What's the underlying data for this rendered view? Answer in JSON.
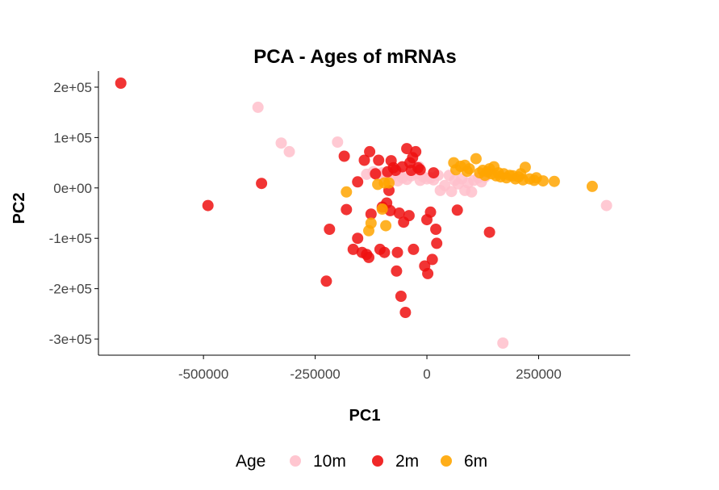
{
  "chart_data": {
    "type": "scatter",
    "title": "PCA - Ages of mRNAs",
    "xlabel": "PC1",
    "ylabel": "PC2",
    "xlim": [
      -735000,
      455000
    ],
    "ylim": [
      -332000,
      232000
    ],
    "x_ticks": [
      {
        "value": -500000,
        "label": "-500000"
      },
      {
        "value": -250000,
        "label": "-250000"
      },
      {
        "value": 0,
        "label": "0"
      },
      {
        "value": 250000,
        "label": "250000"
      }
    ],
    "y_ticks": [
      {
        "value": 200000,
        "label": "2e+05"
      },
      {
        "value": 100000,
        "label": "1e+05"
      },
      {
        "value": 0,
        "label": "0e+00"
      },
      {
        "value": -100000,
        "label": "-1e+05"
      },
      {
        "value": -200000,
        "label": "-2e+05"
      },
      {
        "value": -300000,
        "label": "-3e+05"
      }
    ],
    "grid": false,
    "legend": {
      "title": "Age",
      "placement": "bottom"
    },
    "series": [
      {
        "name": "10m",
        "color": "#ffc0cb",
        "points": [
          [
            -378000,
            160000
          ],
          [
            -326000,
            89000
          ],
          [
            -308000,
            72000
          ],
          [
            -200000,
            91000
          ],
          [
            -135000,
            27000
          ],
          [
            -120000,
            32000
          ],
          [
            -110000,
            25000
          ],
          [
            -100000,
            30000
          ],
          [
            -90000,
            22000
          ],
          [
            -82000,
            18000
          ],
          [
            -75000,
            26000
          ],
          [
            -65000,
            14000
          ],
          [
            -55000,
            20000
          ],
          [
            -45000,
            17000
          ],
          [
            -35000,
            24000
          ],
          [
            -25000,
            28000
          ],
          [
            -18000,
            42000
          ],
          [
            -15000,
            15000
          ],
          [
            -8000,
            22000
          ],
          [
            0,
            18000
          ],
          [
            8000,
            20000
          ],
          [
            15000,
            16000
          ],
          [
            25000,
            25000
          ],
          [
            30000,
            -5000
          ],
          [
            40000,
            5000
          ],
          [
            50000,
            25000
          ],
          [
            55000,
            -7000
          ],
          [
            62000,
            15000
          ],
          [
            70000,
            8000
          ],
          [
            78000,
            18000
          ],
          [
            85000,
            -5000
          ],
          [
            92000,
            10000
          ],
          [
            100000,
            -8000
          ],
          [
            105000,
            15000
          ],
          [
            115000,
            20000
          ],
          [
            122000,
            12000
          ],
          [
            130000,
            22000
          ],
          [
            170000,
            -308000
          ],
          [
            402000,
            -35000
          ],
          [
            -60000,
            28000
          ]
        ]
      },
      {
        "name": "2m",
        "color": "#ee1111",
        "points": [
          [
            -685000,
            208000
          ],
          [
            -490000,
            -35000
          ],
          [
            -370000,
            9000
          ],
          [
            -225000,
            -185000
          ],
          [
            -218000,
            -82000
          ],
          [
            -185000,
            63000
          ],
          [
            -180000,
            -43000
          ],
          [
            -165000,
            -122000
          ],
          [
            -155000,
            -100000
          ],
          [
            -155000,
            12000
          ],
          [
            -145000,
            -128000
          ],
          [
            -140000,
            55000
          ],
          [
            -135000,
            -132000
          ],
          [
            -130000,
            -138000
          ],
          [
            -128000,
            72000
          ],
          [
            -125000,
            -52000
          ],
          [
            -115000,
            28000
          ],
          [
            -108000,
            55000
          ],
          [
            -105000,
            -122000
          ],
          [
            -100000,
            -38000
          ],
          [
            -95000,
            -128000
          ],
          [
            -90000,
            -30000
          ],
          [
            -88000,
            32000
          ],
          [
            -85000,
            -5000
          ],
          [
            -82000,
            -45000
          ],
          [
            -80000,
            54000
          ],
          [
            -75000,
            40000
          ],
          [
            -70000,
            35000
          ],
          [
            -68000,
            -165000
          ],
          [
            -66000,
            -128000
          ],
          [
            -62000,
            -50000
          ],
          [
            -58000,
            -215000
          ],
          [
            -55000,
            42000
          ],
          [
            -52000,
            -68000
          ],
          [
            -48000,
            -247000
          ],
          [
            -45000,
            78000
          ],
          [
            -40000,
            -55000
          ],
          [
            -38000,
            50000
          ],
          [
            -35000,
            35000
          ],
          [
            -32000,
            60000
          ],
          [
            -30000,
            -122000
          ],
          [
            -25000,
            72000
          ],
          [
            -20000,
            40000
          ],
          [
            -15000,
            36000
          ],
          [
            -5000,
            -155000
          ],
          [
            0,
            -63000
          ],
          [
            2000,
            -170000
          ],
          [
            8000,
            -48000
          ],
          [
            12000,
            -142000
          ],
          [
            15000,
            30000
          ],
          [
            20000,
            -82000
          ],
          [
            22000,
            -110000
          ],
          [
            68000,
            -44000
          ],
          [
            140000,
            -88000
          ]
        ]
      },
      {
        "name": "6m",
        "color": "#ffa500",
        "points": [
          [
            -180000,
            -8000
          ],
          [
            -130000,
            -85000
          ],
          [
            -125000,
            -70000
          ],
          [
            -110000,
            7000
          ],
          [
            -100000,
            -42000
          ],
          [
            -95000,
            10000
          ],
          [
            -92000,
            -75000
          ],
          [
            -85000,
            10000
          ],
          [
            60000,
            50000
          ],
          [
            65000,
            36000
          ],
          [
            75000,
            43000
          ],
          [
            85000,
            45000
          ],
          [
            90000,
            33000
          ],
          [
            95000,
            38000
          ],
          [
            110000,
            58000
          ],
          [
            118000,
            30000
          ],
          [
            125000,
            35000
          ],
          [
            130000,
            25000
          ],
          [
            135000,
            32000
          ],
          [
            140000,
            38000
          ],
          [
            145000,
            28000
          ],
          [
            150000,
            42000
          ],
          [
            155000,
            24000
          ],
          [
            160000,
            30000
          ],
          [
            165000,
            22000
          ],
          [
            172000,
            28000
          ],
          [
            178000,
            20000
          ],
          [
            185000,
            25000
          ],
          [
            192000,
            24000
          ],
          [
            198000,
            18000
          ],
          [
            205000,
            22000
          ],
          [
            210000,
            28000
          ],
          [
            215000,
            16000
          ],
          [
            220000,
            41000
          ],
          [
            230000,
            18000
          ],
          [
            240000,
            15000
          ],
          [
            245000,
            20000
          ],
          [
            260000,
            14000
          ],
          [
            285000,
            13000
          ],
          [
            370000,
            3000
          ]
        ]
      }
    ]
  }
}
